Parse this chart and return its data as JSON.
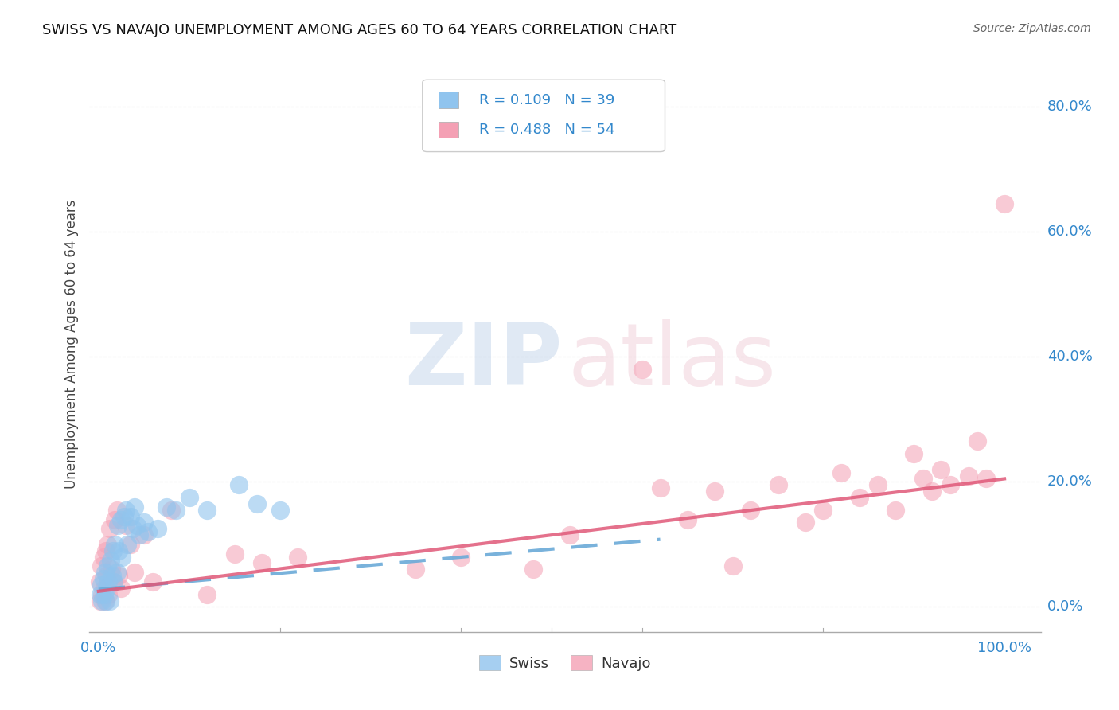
{
  "title": "SWISS VS NAVAJO UNEMPLOYMENT AMONG AGES 60 TO 64 YEARS CORRELATION CHART",
  "source": "Source: ZipAtlas.com",
  "ylabel": "Unemployment Among Ages 60 to 64 years",
  "ytick_values": [
    0.0,
    0.2,
    0.4,
    0.6,
    0.8
  ],
  "ytick_labels": [
    "0.0%",
    "20.0%",
    "40.0%",
    "60.0%",
    "80.0%"
  ],
  "xlim": [
    -0.01,
    1.04
  ],
  "ylim": [
    -0.04,
    0.88
  ],
  "swiss_color": "#90C4EE",
  "navajo_color": "#F4A0B4",
  "trendline_swiss_color": "#6BAAD8",
  "trendline_navajo_color": "#E05878",
  "swiss_R": 0.109,
  "swiss_N": 39,
  "navajo_R": 0.488,
  "navajo_N": 54,
  "swiss_x": [
    0.002,
    0.003,
    0.004,
    0.005,
    0.006,
    0.007,
    0.008,
    0.009,
    0.01,
    0.011,
    0.012,
    0.013,
    0.015,
    0.016,
    0.017,
    0.018,
    0.02,
    0.021,
    0.022,
    0.025,
    0.026,
    0.028,
    0.03,
    0.032,
    0.035,
    0.038,
    0.04,
    0.042,
    0.045,
    0.05,
    0.055,
    0.065,
    0.075,
    0.085,
    0.1,
    0.12,
    0.155,
    0.175,
    0.2
  ],
  "swiss_y": [
    0.02,
    0.035,
    0.01,
    0.045,
    0.02,
    0.055,
    0.01,
    0.03,
    0.065,
    0.04,
    0.01,
    0.075,
    0.05,
    0.09,
    0.04,
    0.1,
    0.055,
    0.13,
    0.09,
    0.14,
    0.08,
    0.145,
    0.155,
    0.1,
    0.145,
    0.125,
    0.16,
    0.13,
    0.115,
    0.135,
    0.12,
    0.125,
    0.16,
    0.155,
    0.175,
    0.155,
    0.195,
    0.165,
    0.155
  ],
  "navajo_x": [
    0.001,
    0.002,
    0.003,
    0.004,
    0.005,
    0.006,
    0.007,
    0.008,
    0.009,
    0.01,
    0.011,
    0.012,
    0.014,
    0.016,
    0.018,
    0.02,
    0.022,
    0.025,
    0.03,
    0.035,
    0.04,
    0.05,
    0.06,
    0.08,
    0.12,
    0.15,
    0.18,
    0.22,
    0.35,
    0.4,
    0.48,
    0.52,
    0.6,
    0.62,
    0.65,
    0.68,
    0.7,
    0.72,
    0.75,
    0.78,
    0.8,
    0.82,
    0.84,
    0.86,
    0.88,
    0.9,
    0.91,
    0.92,
    0.93,
    0.94,
    0.96,
    0.97,
    0.98,
    1.0
  ],
  "navajo_y": [
    0.04,
    0.01,
    0.065,
    0.02,
    0.08,
    0.03,
    0.01,
    0.09,
    0.05,
    0.1,
    0.02,
    0.125,
    0.06,
    0.04,
    0.14,
    0.155,
    0.05,
    0.03,
    0.13,
    0.1,
    0.055,
    0.115,
    0.04,
    0.155,
    0.02,
    0.085,
    0.07,
    0.08,
    0.06,
    0.08,
    0.06,
    0.115,
    0.38,
    0.19,
    0.14,
    0.185,
    0.065,
    0.155,
    0.195,
    0.135,
    0.155,
    0.215,
    0.175,
    0.195,
    0.155,
    0.245,
    0.205,
    0.185,
    0.22,
    0.195,
    0.21,
    0.265,
    0.205,
    0.645
  ],
  "swiss_trend_x": [
    0.0,
    0.62
  ],
  "swiss_trend_y": [
    0.028,
    0.108
  ],
  "navajo_trend_x": [
    0.0,
    1.0
  ],
  "navajo_trend_y": [
    0.025,
    0.205
  ],
  "background_color": "#FFFFFF",
  "grid_color": "#CCCCCC"
}
